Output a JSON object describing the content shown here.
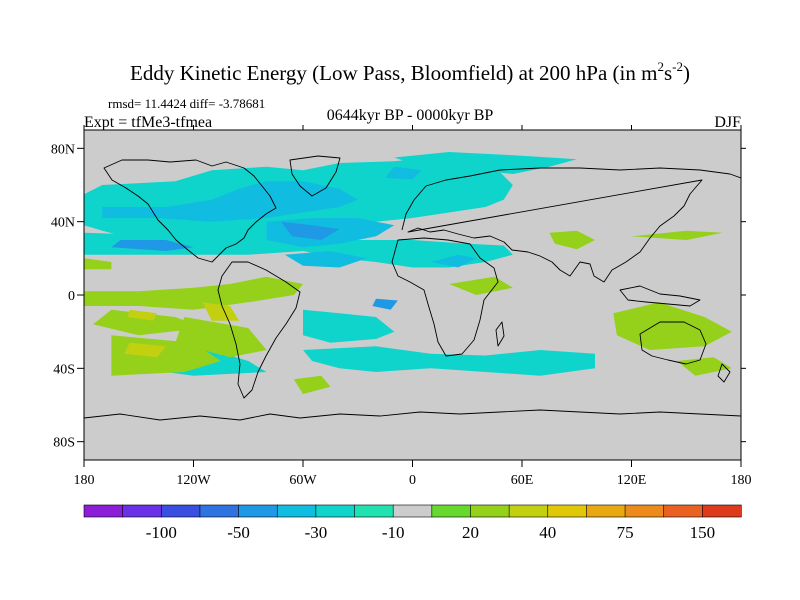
{
  "chart_data": {
    "type": "heatmap",
    "title": "Eddy Kinetic Energy (Low Pass, Bloomfield) at 200 hPa (in m",
    "title_units_sup1": "2",
    "title_units_s": "s",
    "title_units_sup2": "-2",
    "title_units_close": ")",
    "stats": "rmsd= 11.4424  diff= -3.78681",
    "experiment": "Expt = tfMe3-tfmea",
    "period": "0644kyr BP - 0000kyr BP",
    "season": "DJF",
    "x_ticks": [
      "180",
      "120W",
      "60W",
      "0",
      "60E",
      "120E",
      "180"
    ],
    "x_tick_values": [
      -180,
      -120,
      -60,
      0,
      60,
      120,
      180
    ],
    "y_ticks": [
      "80N",
      "40N",
      "0",
      "40S",
      "80S"
    ],
    "y_tick_values": [
      80,
      40,
      0,
      -40,
      -80
    ],
    "xlim": [
      -180,
      180
    ],
    "ylim": [
      -90,
      90
    ],
    "colorbar": {
      "colors": [
        "#8c1ed8",
        "#6a31e6",
        "#3a4ee0",
        "#2f73e0",
        "#1f98e6",
        "#10bde0",
        "#0fd4cc",
        "#20e2b0",
        "#cccccc",
        "#66d82e",
        "#95d01a",
        "#c2d010",
        "#e0c808",
        "#e8a812",
        "#ec8a1c",
        "#ea6222",
        "#dd3b1c"
      ],
      "labels": [
        "-100",
        "-50",
        "-30",
        "-10",
        "20",
        "40",
        "75",
        "150"
      ],
      "label_boundaries": [
        2,
        4,
        6,
        8,
        10,
        12,
        14,
        16
      ]
    },
    "regions": [
      {
        "level": 6,
        "points": [
          [
            -170,
            60
          ],
          [
            -130,
            62
          ],
          [
            -110,
            68
          ],
          [
            -80,
            70
          ],
          [
            -60,
            68
          ],
          [
            -40,
            72
          ],
          [
            -10,
            73
          ],
          [
            10,
            75
          ],
          [
            30,
            73
          ],
          [
            45,
            70
          ],
          [
            55,
            60
          ],
          [
            50,
            52
          ],
          [
            40,
            48
          ],
          [
            20,
            45
          ],
          [
            0,
            42
          ],
          [
            -20,
            40
          ],
          [
            -40,
            38
          ],
          [
            -60,
            35
          ],
          [
            -80,
            30
          ],
          [
            -100,
            28
          ],
          [
            -130,
            30
          ],
          [
            -150,
            30
          ],
          [
            -170,
            35
          ],
          [
            -180,
            38
          ],
          [
            -180,
            55
          ]
        ]
      },
      {
        "level": 6,
        "points": [
          [
            -180,
            34
          ],
          [
            -150,
            33
          ],
          [
            -120,
            33
          ],
          [
            -90,
            36
          ],
          [
            -60,
            34
          ],
          [
            -30,
            30
          ],
          [
            0,
            30
          ],
          [
            30,
            28
          ],
          [
            50,
            27
          ],
          [
            55,
            22
          ],
          [
            40,
            18
          ],
          [
            20,
            15
          ],
          [
            0,
            15
          ],
          [
            -20,
            18
          ],
          [
            -40,
            20
          ],
          [
            -60,
            24
          ],
          [
            -90,
            22
          ],
          [
            -120,
            22
          ],
          [
            -150,
            22
          ],
          [
            -180,
            22
          ]
        ]
      },
      {
        "level": 6,
        "points": [
          [
            -10,
            75
          ],
          [
            20,
            78
          ],
          [
            60,
            76
          ],
          [
            90,
            74
          ],
          [
            75,
            70
          ],
          [
            55,
            66
          ],
          [
            35,
            68
          ],
          [
            10,
            68
          ]
        ]
      },
      {
        "level": 6,
        "points": [
          [
            -60,
            -8
          ],
          [
            -40,
            -10
          ],
          [
            -20,
            -12
          ],
          [
            -10,
            -20
          ],
          [
            -20,
            -24
          ],
          [
            -45,
            -26
          ],
          [
            -60,
            -22
          ]
        ]
      },
      {
        "level": 6,
        "points": [
          [
            -150,
            -30
          ],
          [
            -110,
            -30
          ],
          [
            -90,
            -36
          ],
          [
            -80,
            -42
          ],
          [
            -120,
            -44
          ],
          [
            -150,
            -40
          ]
        ]
      },
      {
        "level": 6,
        "points": [
          [
            -60,
            -30
          ],
          [
            -20,
            -28
          ],
          [
            10,
            -32
          ],
          [
            40,
            -33
          ],
          [
            70,
            -30
          ],
          [
            100,
            -32
          ],
          [
            100,
            -40
          ],
          [
            70,
            -44
          ],
          [
            40,
            -42
          ],
          [
            10,
            -40
          ],
          [
            -20,
            -42
          ],
          [
            -40,
            -40
          ],
          [
            -55,
            -36
          ]
        ]
      },
      {
        "level": 5,
        "points": [
          [
            -170,
            48
          ],
          [
            -135,
            48
          ],
          [
            -110,
            52
          ],
          [
            -95,
            58
          ],
          [
            -80,
            62
          ],
          [
            -60,
            62
          ],
          [
            -40,
            58
          ],
          [
            -30,
            52
          ],
          [
            -40,
            48
          ],
          [
            -60,
            45
          ],
          [
            -80,
            42
          ],
          [
            -110,
            40
          ],
          [
            -140,
            42
          ],
          [
            -170,
            42
          ]
        ]
      },
      {
        "level": 5,
        "points": [
          [
            -80,
            40
          ],
          [
            -55,
            42
          ],
          [
            -30,
            42
          ],
          [
            -10,
            38
          ],
          [
            -20,
            32
          ],
          [
            -40,
            28
          ],
          [
            -60,
            26
          ],
          [
            -80,
            30
          ]
        ]
      },
      {
        "level": 5,
        "points": [
          [
            -70,
            22
          ],
          [
            -45,
            24
          ],
          [
            -25,
            20
          ],
          [
            -40,
            15
          ],
          [
            -60,
            16
          ]
        ]
      },
      {
        "level": 5,
        "points": [
          [
            -10,
            70
          ],
          [
            5,
            68
          ],
          [
            0,
            63
          ],
          [
            -15,
            64
          ]
        ]
      },
      {
        "level": 5,
        "points": [
          [
            10,
            18
          ],
          [
            25,
            22
          ],
          [
            35,
            20
          ],
          [
            25,
            15
          ]
        ]
      },
      {
        "level": 4,
        "points": [
          [
            -165,
            26
          ],
          [
            -135,
            24
          ],
          [
            -120,
            26
          ],
          [
            -135,
            30
          ],
          [
            -160,
            30
          ]
        ]
      },
      {
        "level": 4,
        "points": [
          [
            -72,
            40
          ],
          [
            -55,
            38
          ],
          [
            -40,
            36
          ],
          [
            -50,
            30
          ],
          [
            -66,
            32
          ]
        ]
      },
      {
        "level": 4,
        "points": [
          [
            -20,
            -2
          ],
          [
            -8,
            -3
          ],
          [
            -12,
            -8
          ],
          [
            -22,
            -6
          ]
        ]
      },
      {
        "level": 10,
        "points": [
          [
            -180,
            2
          ],
          [
            -150,
            2
          ],
          [
            -120,
            4
          ],
          [
            -100,
            6
          ],
          [
            -80,
            10
          ],
          [
            -60,
            6
          ],
          [
            -65,
            0
          ],
          [
            -90,
            -4
          ],
          [
            -120,
            -8
          ],
          [
            -150,
            -6
          ],
          [
            -180,
            -6
          ]
        ]
      },
      {
        "level": 10,
        "points": [
          [
            -125,
            -12
          ],
          [
            -90,
            -18
          ],
          [
            -80,
            -30
          ],
          [
            -100,
            -34
          ],
          [
            -130,
            -26
          ]
        ]
      },
      {
        "level": 10,
        "points": [
          [
            -165,
            -8
          ],
          [
            -130,
            -12
          ],
          [
            -115,
            -18
          ],
          [
            -150,
            -22
          ],
          [
            -175,
            -16
          ]
        ]
      },
      {
        "level": 10,
        "points": [
          [
            -165,
            -22
          ],
          [
            -120,
            -26
          ],
          [
            -105,
            -36
          ],
          [
            -125,
            -42
          ],
          [
            -165,
            -44
          ]
        ]
      },
      {
        "level": 10,
        "points": [
          [
            75,
            34
          ],
          [
            90,
            35
          ],
          [
            100,
            30
          ],
          [
            90,
            25
          ],
          [
            78,
            28
          ]
        ]
      },
      {
        "level": 10,
        "points": [
          [
            120,
            32
          ],
          [
            150,
            35
          ],
          [
            170,
            34
          ],
          [
            150,
            30
          ]
        ]
      },
      {
        "level": 10,
        "points": [
          [
            20,
            6
          ],
          [
            45,
            10
          ],
          [
            55,
            4
          ],
          [
            35,
            0
          ]
        ]
      },
      {
        "level": 10,
        "points": [
          [
            110,
            -10
          ],
          [
            135,
            -4
          ],
          [
            160,
            -12
          ],
          [
            175,
            -20
          ],
          [
            160,
            -28
          ],
          [
            130,
            -30
          ],
          [
            112,
            -22
          ]
        ]
      },
      {
        "level": 10,
        "points": [
          [
            145,
            -36
          ],
          [
            165,
            -34
          ],
          [
            175,
            -40
          ],
          [
            155,
            -44
          ]
        ]
      },
      {
        "level": 10,
        "points": [
          [
            -65,
            -46
          ],
          [
            -50,
            -44
          ],
          [
            -45,
            -50
          ],
          [
            -60,
            -54
          ]
        ]
      },
      {
        "level": 10,
        "points": [
          [
            -180,
            20
          ],
          [
            -165,
            18
          ],
          [
            -165,
            14
          ],
          [
            -180,
            14
          ]
        ]
      },
      {
        "level": 11,
        "points": [
          [
            -115,
            -4
          ],
          [
            -100,
            -6
          ],
          [
            -95,
            -14
          ],
          [
            -110,
            -14
          ]
        ]
      },
      {
        "level": 11,
        "points": [
          [
            -155,
            -8
          ],
          [
            -140,
            -10
          ],
          [
            -142,
            -14
          ],
          [
            -156,
            -12
          ]
        ]
      },
      {
        "level": 11,
        "points": [
          [
            -155,
            -26
          ],
          [
            -135,
            -28
          ],
          [
            -140,
            -34
          ],
          [
            -158,
            -32
          ]
        ]
      }
    ]
  }
}
